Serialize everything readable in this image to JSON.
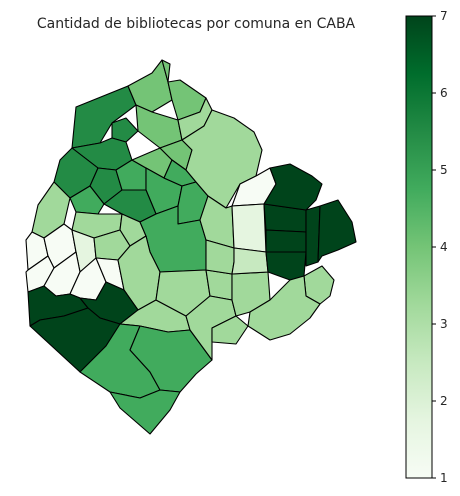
{
  "title": "Cantidad de bibliotecas por comuna en CABA",
  "colorbar": {
    "min": 1,
    "max": 7,
    "ticks": [
      "1",
      "2",
      "3",
      "4",
      "5",
      "6",
      "7"
    ],
    "stops": [
      "#f7fcf5",
      "#e5f5e0",
      "#c7e9c0",
      "#a1d99b",
      "#74c476",
      "#41ab5d",
      "#238b45",
      "#006d2c",
      "#00441b"
    ]
  },
  "map": {
    "region": "CABA",
    "fill_scale": "Greens",
    "border_color": "#000000"
  }
}
